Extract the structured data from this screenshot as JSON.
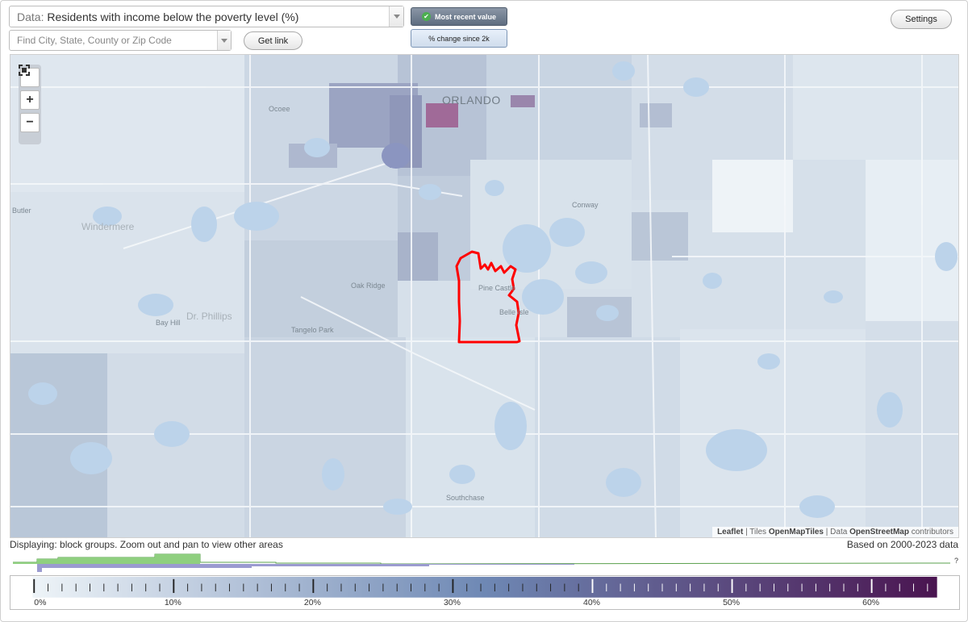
{
  "data_selector": {
    "label": "Data:",
    "value": "Residents with income below the poverty level (%)"
  },
  "search": {
    "placeholder": "Find City, State, County or Zip Code",
    "value": ""
  },
  "buttons": {
    "get_link": "Get link",
    "settings": "Settings"
  },
  "modes": {
    "recent": "Most recent value",
    "change": "% change since 2k",
    "selected": "recent"
  },
  "map": {
    "labels": {
      "orlando": "ORLANDO",
      "ocoee": "Ocoee",
      "windermere": "Windermere",
      "butler": "Butler",
      "conway": "Conway",
      "oak_ridge": "Oak Ridge",
      "pine_castle": "Pine Castle",
      "belle_isle": "Belle Isle",
      "bay_hill": "Bay Hill",
      "dr_phillips": "Dr. Phillips",
      "tangelo_park": "Tangelo Park",
      "southchase": "Southchase"
    },
    "highlight_color": "#ff0000",
    "attribution": {
      "leaflet": "Leaflet",
      "tiles_prefix": "Tiles",
      "tiles": "OpenMapTiles",
      "data_prefix": "Data",
      "data": "OpenStreetMap",
      "suffix": "contributors"
    }
  },
  "status": {
    "displaying": "Displaying: block groups. Zoom out and pan to view other areas",
    "based_on": "Based on 2000-2023 data"
  },
  "histogram": {
    "help": "?"
  },
  "legend": {
    "min": 0,
    "max": 65,
    "ticks": [
      "0%",
      "10%",
      "20%",
      "30%",
      "40%",
      "50%",
      "60%"
    ],
    "color_start": "#eef4f8",
    "color_mid": "#6e88b4",
    "color_end": "#4a1450"
  }
}
